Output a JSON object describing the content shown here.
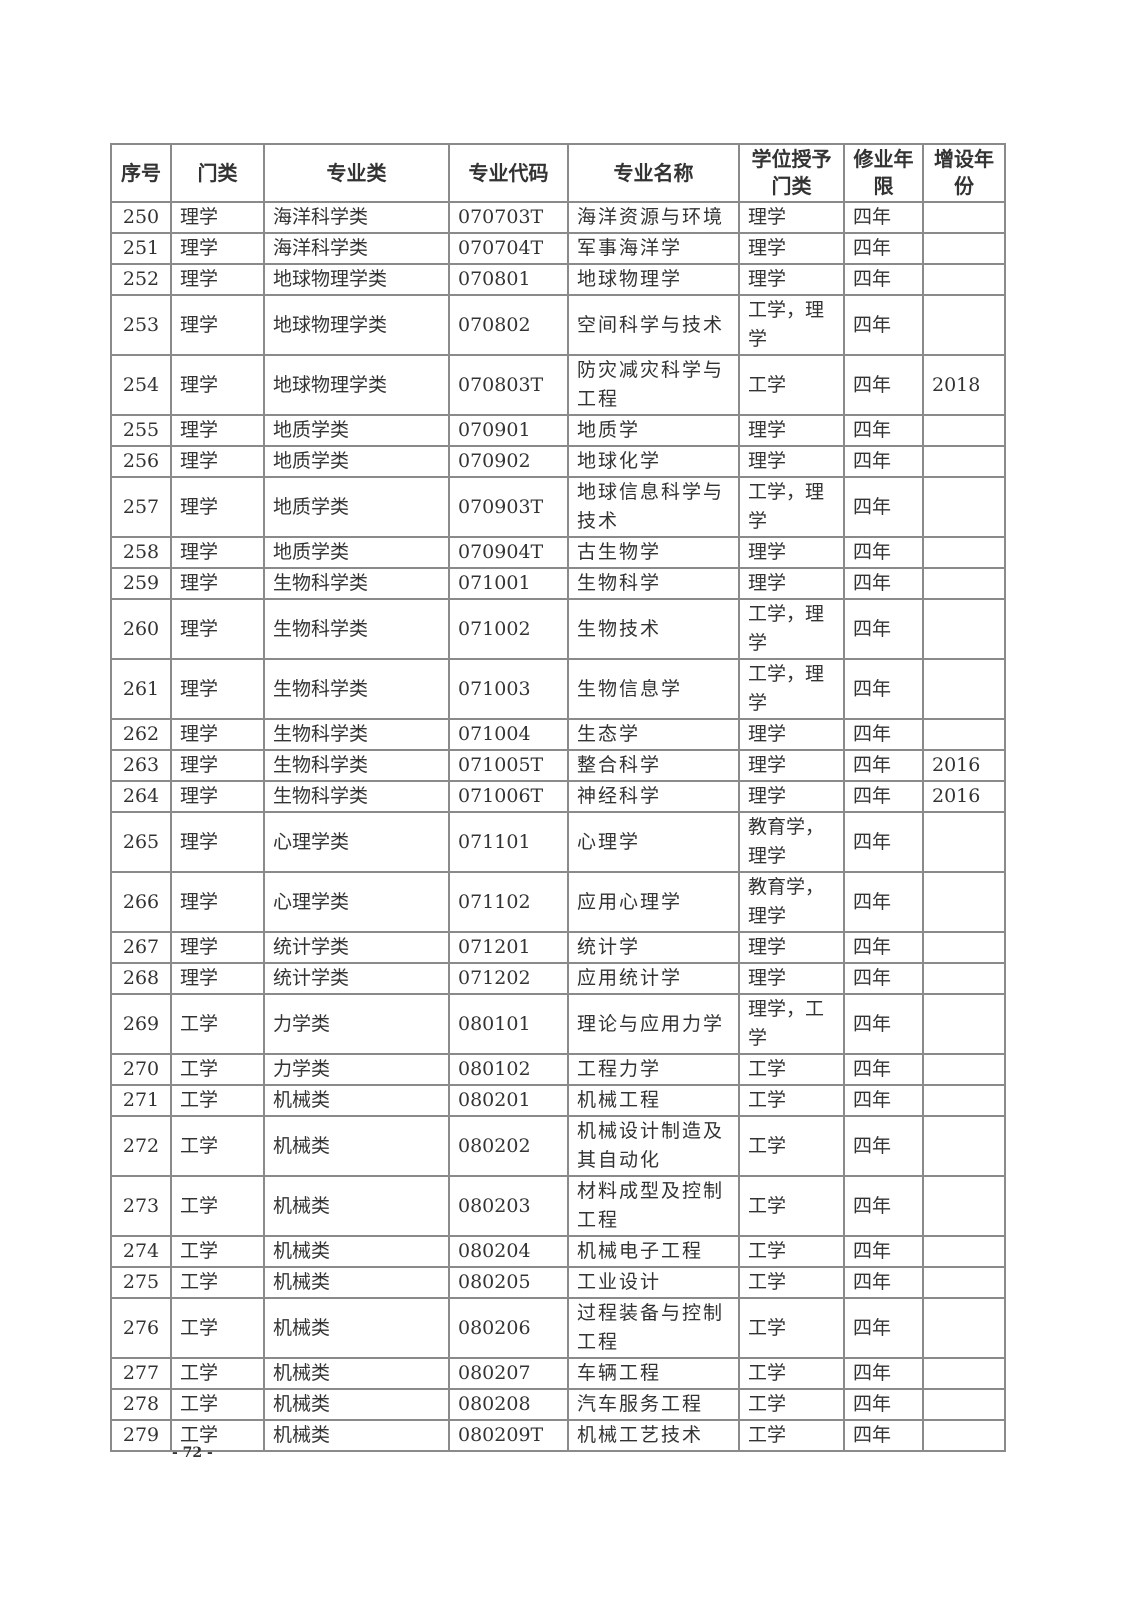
{
  "table": {
    "headers": [
      "序号",
      "门类",
      "专业类",
      "专业代码",
      "专业名称",
      "学位授予门类",
      "修业年限",
      "增设年份"
    ],
    "rows": [
      [
        "250",
        "理学",
        "海洋科学类",
        "070703T",
        "海洋资源与环境",
        "理学",
        "四年",
        ""
      ],
      [
        "251",
        "理学",
        "海洋科学类",
        "070704T",
        "军事海洋学",
        "理学",
        "四年",
        ""
      ],
      [
        "252",
        "理学",
        "地球物理学类",
        "070801",
        "地球物理学",
        "理学",
        "四年",
        ""
      ],
      [
        "253",
        "理学",
        "地球物理学类",
        "070802",
        "空间科学与技术",
        "工学，理学",
        "四年",
        ""
      ],
      [
        "254",
        "理学",
        "地球物理学类",
        "070803T",
        "防灾减灾科学与工程",
        "工学",
        "四年",
        "2018"
      ],
      [
        "255",
        "理学",
        "地质学类",
        "070901",
        "地质学",
        "理学",
        "四年",
        ""
      ],
      [
        "256",
        "理学",
        "地质学类",
        "070902",
        "地球化学",
        "理学",
        "四年",
        ""
      ],
      [
        "257",
        "理学",
        "地质学类",
        "070903T",
        "地球信息科学与技术",
        "工学，理学",
        "四年",
        ""
      ],
      [
        "258",
        "理学",
        "地质学类",
        "070904T",
        "古生物学",
        "理学",
        "四年",
        ""
      ],
      [
        "259",
        "理学",
        "生物科学类",
        "071001",
        "生物科学",
        "理学",
        "四年",
        ""
      ],
      [
        "260",
        "理学",
        "生物科学类",
        "071002",
        "生物技术",
        "工学，理学",
        "四年",
        ""
      ],
      [
        "261",
        "理学",
        "生物科学类",
        "071003",
        "生物信息学",
        "工学，理学",
        "四年",
        ""
      ],
      [
        "262",
        "理学",
        "生物科学类",
        "071004",
        "生态学",
        "理学",
        "四年",
        ""
      ],
      [
        "263",
        "理学",
        "生物科学类",
        "071005T",
        "整合科学",
        "理学",
        "四年",
        "2016"
      ],
      [
        "264",
        "理学",
        "生物科学类",
        "071006T",
        "神经科学",
        "理学",
        "四年",
        "2016"
      ],
      [
        "265",
        "理学",
        "心理学类",
        "071101",
        "心理学",
        "教育学，理学",
        "四年",
        ""
      ],
      [
        "266",
        "理学",
        "心理学类",
        "071102",
        "应用心理学",
        "教育学，理学",
        "四年",
        ""
      ],
      [
        "267",
        "理学",
        "统计学类",
        "071201",
        "统计学",
        "理学",
        "四年",
        ""
      ],
      [
        "268",
        "理学",
        "统计学类",
        "071202",
        "应用统计学",
        "理学",
        "四年",
        ""
      ],
      [
        "269",
        "工学",
        "力学类",
        "080101",
        "理论与应用力学",
        "理学，工学",
        "四年",
        ""
      ],
      [
        "270",
        "工学",
        "力学类",
        "080102",
        "工程力学",
        "工学",
        "四年",
        ""
      ],
      [
        "271",
        "工学",
        "机械类",
        "080201",
        "机械工程",
        "工学",
        "四年",
        ""
      ],
      [
        "272",
        "工学",
        "机械类",
        "080202",
        "机械设计制造及其自动化",
        "工学",
        "四年",
        ""
      ],
      [
        "273",
        "工学",
        "机械类",
        "080203",
        "材料成型及控制工程",
        "工学",
        "四年",
        ""
      ],
      [
        "274",
        "工学",
        "机械类",
        "080204",
        "机械电子工程",
        "工学",
        "四年",
        ""
      ],
      [
        "275",
        "工学",
        "机械类",
        "080205",
        "工业设计",
        "工学",
        "四年",
        ""
      ],
      [
        "276",
        "工学",
        "机械类",
        "080206",
        "过程装备与控制工程",
        "工学",
        "四年",
        ""
      ],
      [
        "277",
        "工学",
        "机械类",
        "080207",
        "车辆工程",
        "工学",
        "四年",
        ""
      ],
      [
        "278",
        "工学",
        "机械类",
        "080208",
        "汽车服务工程",
        "工学",
        "四年",
        ""
      ],
      [
        "279",
        "工学",
        "机械类",
        "080209T",
        "机械工艺技术",
        "工学",
        "四年",
        ""
      ]
    ]
  },
  "footer": {
    "page_number": "- 72 -"
  }
}
